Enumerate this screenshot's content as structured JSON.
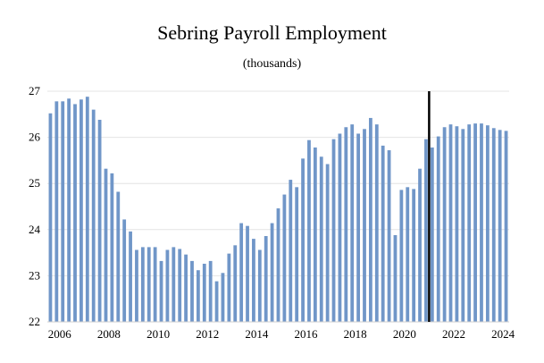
{
  "chart_data": {
    "type": "bar",
    "title": "Sebring Payroll Employment",
    "subtitle": "(thousands)",
    "xlabel": "",
    "ylabel": "",
    "ylim": [
      22,
      27
    ],
    "yticks": [
      "22",
      "23",
      "24",
      "25",
      "26",
      "27"
    ],
    "xticks": [
      "2006",
      "2008",
      "2010",
      "2012",
      "2014",
      "2016",
      "2018",
      "2020",
      "2022",
      "2024"
    ],
    "grid": true,
    "bar_color": "#7096c8",
    "forecast_divider_color": "#000000",
    "forecast_divider_after": "2021 Q2",
    "categories": [
      "2006 Q1",
      "2006 Q2",
      "2006 Q3",
      "2006 Q4",
      "2007 Q1",
      "2007 Q2",
      "2007 Q3",
      "2007 Q4",
      "2008 Q1",
      "2008 Q2",
      "2008 Q3",
      "2008 Q4",
      "2009 Q1",
      "2009 Q2",
      "2009 Q3",
      "2009 Q4",
      "2010 Q1",
      "2010 Q2",
      "2010 Q3",
      "2010 Q4",
      "2011 Q1",
      "2011 Q2",
      "2011 Q3",
      "2011 Q4",
      "2012 Q1",
      "2012 Q2",
      "2012 Q3",
      "2012 Q4",
      "2013 Q1",
      "2013 Q2",
      "2013 Q3",
      "2013 Q4",
      "2014 Q1",
      "2014 Q2",
      "2014 Q3",
      "2014 Q4",
      "2015 Q1",
      "2015 Q2",
      "2015 Q3",
      "2015 Q4",
      "2016 Q1",
      "2016 Q2",
      "2016 Q3",
      "2016 Q4",
      "2017 Q1",
      "2017 Q2",
      "2017 Q3",
      "2017 Q4",
      "2018 Q1",
      "2018 Q2",
      "2018 Q3",
      "2018 Q4",
      "2019 Q1",
      "2019 Q2",
      "2019 Q3",
      "2019 Q4",
      "2020 Q1",
      "2020 Q2",
      "2020 Q3",
      "2020 Q4",
      "2021 Q1",
      "2021 Q2",
      "2021 Q3",
      "2021 Q4",
      "2022 Q1",
      "2022 Q2",
      "2022 Q3",
      "2022 Q4",
      "2023 Q1",
      "2023 Q2",
      "2023 Q3",
      "2023 Q4",
      "2024 Q1",
      "2024 Q2",
      "2024 Q3"
    ],
    "values": [
      26.52,
      26.78,
      26.78,
      26.84,
      26.72,
      26.82,
      26.88,
      26.6,
      26.38,
      25.32,
      25.22,
      24.82,
      24.22,
      23.96,
      23.56,
      23.62,
      23.62,
      23.62,
      23.32,
      23.56,
      23.62,
      23.58,
      23.46,
      23.32,
      23.12,
      23.26,
      23.32,
      22.88,
      23.06,
      23.48,
      23.66,
      24.14,
      24.08,
      23.8,
      23.56,
      23.86,
      24.14,
      24.46,
      24.76,
      25.08,
      24.92,
      25.54,
      25.94,
      25.78,
      25.58,
      25.42,
      25.96,
      26.08,
      26.22,
      26.28,
      26.08,
      26.18,
      26.42,
      26.28,
      25.82,
      25.72,
      23.88,
      24.86,
      24.92,
      24.88,
      25.32,
      25.96,
      25.78,
      26.02,
      26.22,
      26.28,
      26.24,
      26.18,
      26.28,
      26.3,
      26.3,
      26.26,
      26.2,
      26.16,
      26.14
    ]
  }
}
